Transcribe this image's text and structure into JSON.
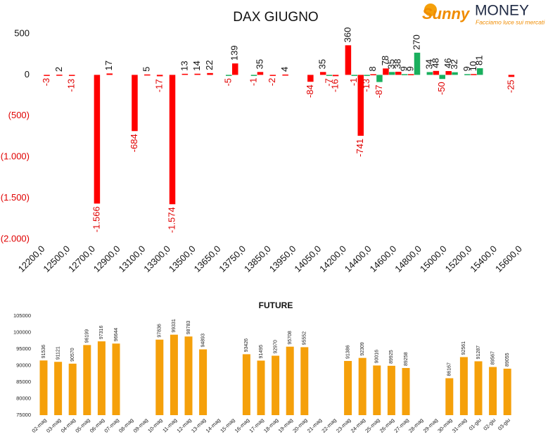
{
  "logo": {
    "brand": [
      "Sunny",
      "MONEY"
    ],
    "tagline": "Facciamo luce sui mercati"
  },
  "chart_data": [
    {
      "type": "bar",
      "title": "DAX GIUGNO",
      "categories": [
        "12200,0",
        null,
        "12500,0",
        null,
        "12700,0",
        null,
        "12900,0",
        null,
        "13100,0",
        null,
        "13300,0",
        null,
        "13500,0",
        null,
        "13650,0",
        null,
        "13750,0",
        null,
        "13850,0",
        null,
        "13950,0",
        null,
        "14050,0",
        null,
        "14200,0",
        null,
        "14400,0",
        null,
        "14600,0",
        null,
        "14800,0",
        null,
        "15000,0",
        null,
        "15200,0",
        null,
        "15400,0",
        null,
        "15600,0"
      ],
      "series": [
        {
          "color": "#ff0000",
          "values": [
            -3,
            2,
            -13,
            null,
            -1566,
            17,
            null,
            -684,
            5,
            -17,
            -1574,
            13,
            14,
            22,
            null,
            139,
            null,
            35,
            -2,
            4,
            null,
            -84,
            35,
            -16,
            360,
            -741,
            8,
            78,
            38,
            9,
            null,
            48,
            46,
            null,
            10,
            null,
            null,
            -25,
            null
          ],
          "value_labels": [
            "-3",
            "2",
            "-13",
            null,
            "-1.566",
            "17",
            null,
            "-684",
            "5",
            "-17",
            "-1.574",
            "13",
            "14",
            "22",
            null,
            "139",
            null,
            "35",
            "-2",
            "4",
            null,
            "-84",
            "35",
            "-16",
            "360",
            "-741",
            "8",
            "78",
            "38",
            "9",
            null,
            "48",
            "46",
            null,
            "10",
            null,
            null,
            "-25",
            null
          ]
        },
        {
          "color": "#1aaf5d",
          "values": [
            null,
            null,
            null,
            null,
            null,
            null,
            null,
            null,
            null,
            null,
            null,
            null,
            null,
            null,
            null,
            -5,
            null,
            -1,
            null,
            null,
            null,
            null,
            null,
            -7,
            null,
            -1,
            -13,
            -87,
            35,
            9,
            270,
            34,
            -50,
            32,
            9,
            81,
            null,
            null,
            null
          ],
          "value_labels": [
            null,
            null,
            null,
            null,
            null,
            null,
            null,
            null,
            null,
            null,
            null,
            null,
            null,
            null,
            null,
            "-5",
            null,
            "-1",
            null,
            null,
            null,
            null,
            null,
            "-7",
            null,
            "-1",
            "-13",
            "-87",
            "35",
            "9",
            "270",
            "34",
            "-50",
            "32",
            "9",
            "81",
            null,
            null,
            null
          ]
        }
      ],
      "ylim": [
        -2000,
        500
      ],
      "yticks": [
        500,
        0,
        {
          "value": -500,
          "label": "(500)"
        },
        {
          "value": -1000,
          "label": "(1.000)"
        },
        {
          "value": -1500,
          "label": "(1.500)"
        },
        {
          "value": -2000,
          "label": "(2.000)"
        }
      ]
    },
    {
      "type": "bar",
      "title": "FUTURE",
      "color": "#f5a00a",
      "categories": [
        "02-mag",
        "03-mag",
        "04-mag",
        "05-mag",
        "06-mag",
        "07-mag",
        "08-mag",
        "09-mag",
        "10-mag",
        "11-mag",
        "12-mag",
        "13-mag",
        "14-mag",
        "15-mag",
        "16-mag",
        "17-mag",
        "18-mag",
        "19-mag",
        "20-mag",
        "21-mag",
        "22-mag",
        "23-mag",
        "24-mag",
        "25-mag",
        "26-mag",
        "27-mag",
        "28-mag",
        "29-mag",
        "30-mag",
        "31-mag",
        "01-giu",
        "02-giu",
        "03-giu"
      ],
      "values": [
        91536,
        91121,
        90570,
        96199,
        97316,
        96644,
        null,
        null,
        97836,
        99331,
        98783,
        94893,
        null,
        null,
        93426,
        91495,
        92970,
        95708,
        95552,
        null,
        null,
        91386,
        92309,
        90016,
        89925,
        89258,
        null,
        null,
        86167,
        92561,
        91287,
        89567,
        89055
      ],
      "ylim": [
        75000,
        105000
      ],
      "yticks": [
        75000,
        80000,
        85000,
        90000,
        95000,
        100000,
        105000
      ]
    }
  ]
}
